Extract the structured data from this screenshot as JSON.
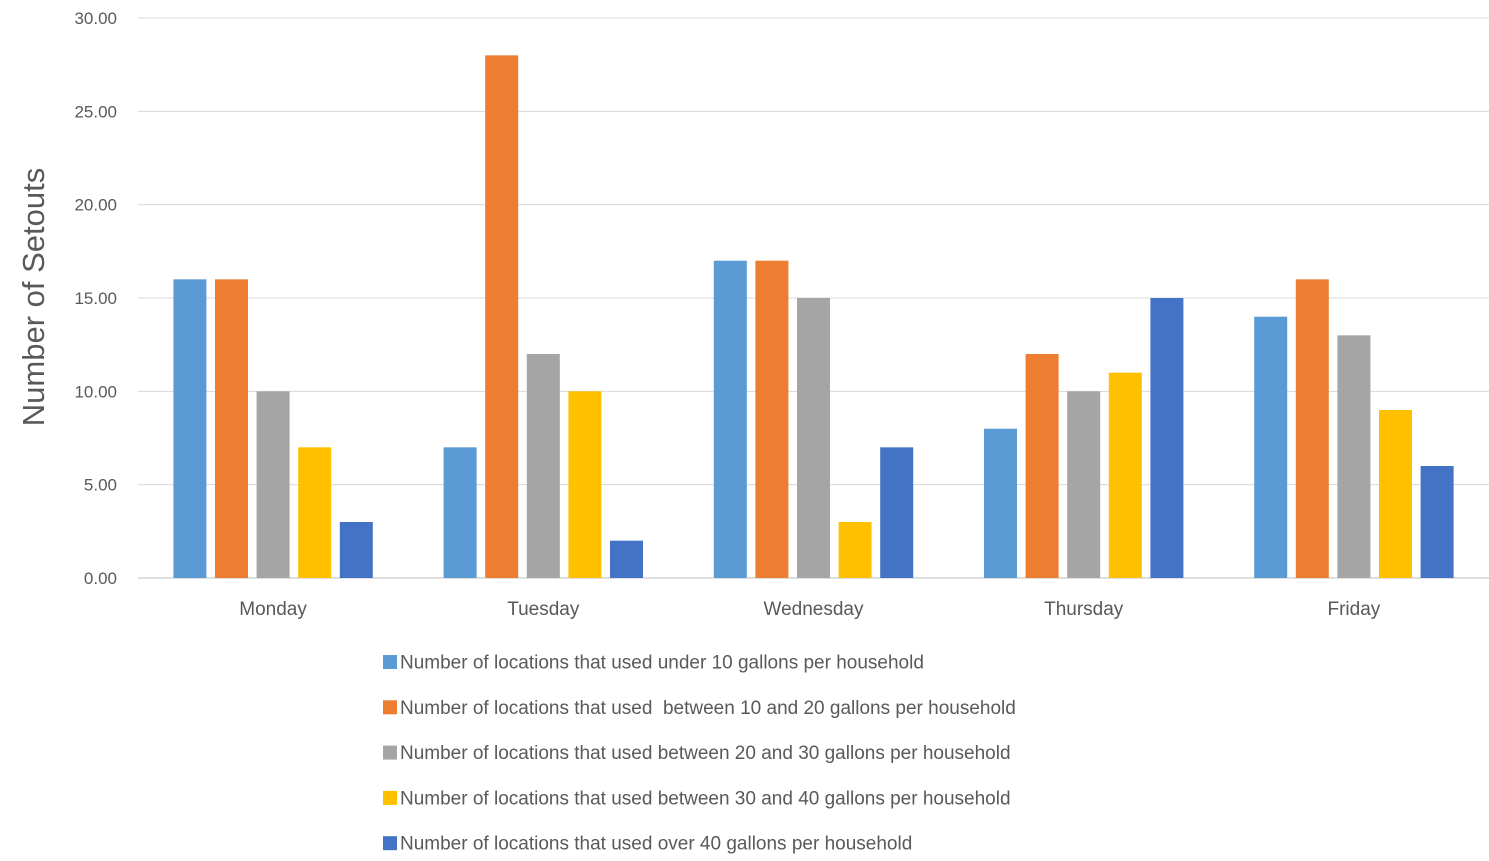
{
  "chart_data": {
    "type": "bar",
    "title": "",
    "xlabel": "",
    "ylabel": "Number of Setouts",
    "ylim": [
      0,
      30
    ],
    "yticks": [
      "0.00",
      "5.00",
      "10.00",
      "15.00",
      "20.00",
      "25.00",
      "30.00"
    ],
    "grid": "horizontal",
    "legend_position": "bottom",
    "categories": [
      "Monday",
      "Tuesday",
      "Wednesday",
      "Thursday",
      "Friday"
    ],
    "series": [
      {
        "name": "Number of locations that used under 10 gallons per household",
        "color": "#5B9BD5",
        "values": [
          16,
          7,
          17,
          8,
          14
        ]
      },
      {
        "name": "Number of locations that used  between 10 and 20 gallons per household",
        "color": "#ED7D31",
        "values": [
          16,
          28,
          17,
          12,
          16
        ]
      },
      {
        "name": "Number of locations that used between 20 and 30 gallons per household",
        "color": "#A5A5A5",
        "values": [
          10,
          12,
          15,
          10,
          13
        ]
      },
      {
        "name": "Number of locations that used between 30 and 40 gallons per household",
        "color": "#FFC000",
        "values": [
          7,
          10,
          3,
          11,
          9
        ]
      },
      {
        "name": "Number of locations that used over 40 gallons per household",
        "color": "#4472C4",
        "values": [
          3,
          2,
          7,
          15,
          6
        ]
      }
    ]
  }
}
